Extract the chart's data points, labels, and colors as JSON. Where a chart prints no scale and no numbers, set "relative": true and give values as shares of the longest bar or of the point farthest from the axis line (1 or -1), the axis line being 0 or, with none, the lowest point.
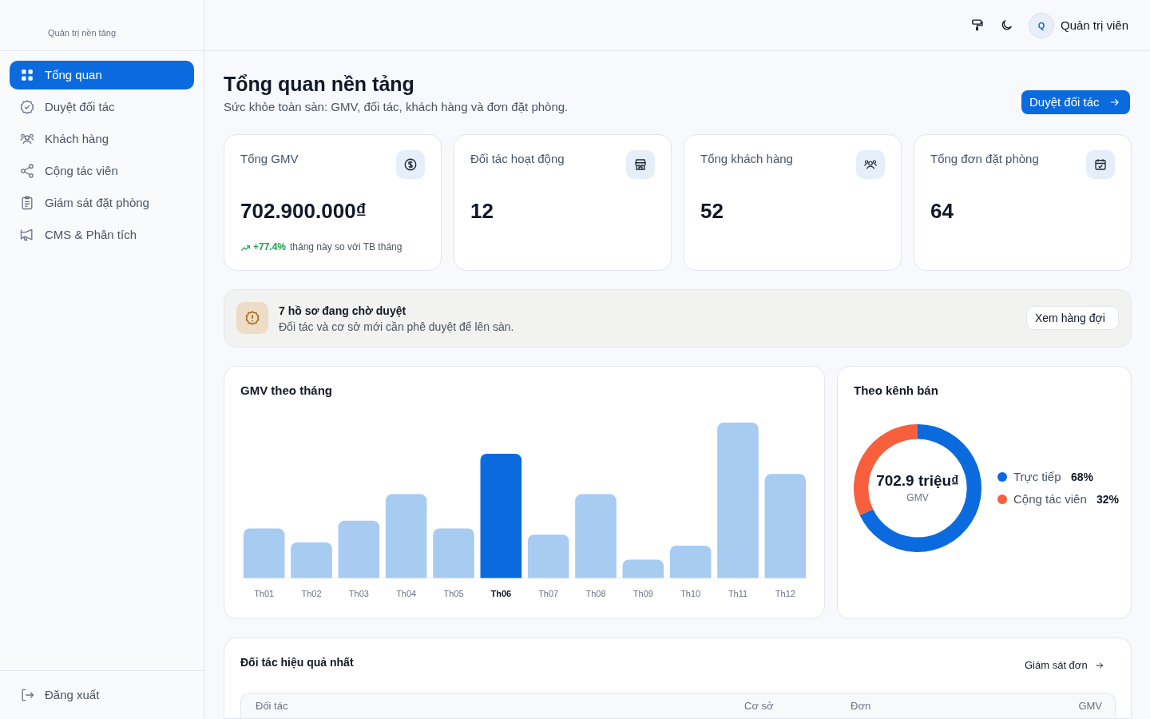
{
  "chart_data": [
    {
      "type": "other",
      "title": "Tổng quan nền tảng",
      "subtitle": "Sức khỏe toàn sàn: GMV, đối tác, khách hàng và đơn đặt phòng.",
      "annotations": [
        "Quản trị nền tảng",
        "Tổng quan",
        "Duyệt đối tác",
        "Khách hàng",
        "Cộng tác viên",
        "Giám sát đặt phòng",
        "CMS & Phân tích",
        "Đăng xuất",
        "Q",
        "Quản trị viên",
        "Duyệt đối tác"
      ]
    },
    {
      "type": "other",
      "title": "Tổng GMV",
      "annotations": [
        "702.900.000₫",
        "+77.4%",
        "tháng này so với TB tháng"
      ]
    },
    {
      "type": "other",
      "title": "Đối tác hoạt động",
      "annotations": [
        "12"
      ]
    },
    {
      "type": "other",
      "title": "Tổng khách hàng",
      "annotations": [
        "52"
      ]
    },
    {
      "type": "other",
      "title": "Tổng đơn đặt phòng",
      "annotations": [
        "64"
      ]
    },
    {
      "type": "other",
      "title": "7 hồ sơ đang chờ duyệt",
      "subtitle": "Đối tác và cơ sở mới cần phê duyệt để lên sàn.",
      "annotations": [
        "Xem hàng đợi"
      ]
    },
    {
      "type": "bar",
      "title": "GMV theo tháng",
      "relative": true,
      "categories": [
        "Th01",
        "Th02",
        "Th03",
        "Th04",
        "Th05",
        "Th06",
        "Th07",
        "Th08",
        "Th09",
        "Th10",
        "Th11",
        "Th12"
      ],
      "values": [
        0.32,
        0.23,
        0.37,
        0.54,
        0.32,
        0.8,
        0.28,
        0.54,
        0.12,
        0.21,
        1,
        0.67
      ],
      "colors": [
        "#a8cbf2",
        "#a8cbf2",
        "#a8cbf2",
        "#a8cbf2",
        "#a8cbf2",
        "#0b6bde",
        "#a8cbf2",
        "#a8cbf2",
        "#a8cbf2",
        "#a8cbf2",
        "#a8cbf2",
        "#a8cbf2"
      ]
    },
    {
      "type": "donut",
      "title": "Theo kênh bán",
      "categories": [
        "Trực tiếp",
        "Cộng tác viên"
      ],
      "values": [
        68,
        32
      ],
      "colors": [
        "#0b6bde",
        "#f75f3d"
      ],
      "value_labels": [
        "68%",
        "32%"
      ],
      "legend": "right",
      "annotations": [
        "702.9 triệu₫",
        "GMV"
      ]
    },
    {
      "type": "other",
      "title": "Đối tác hiệu quả nhất",
      "annotations": [
        "Giám sát đơn",
        "Đối tác",
        "Cơ sở",
        "Đơn",
        "GMV"
      ]
    }
  ]
}
